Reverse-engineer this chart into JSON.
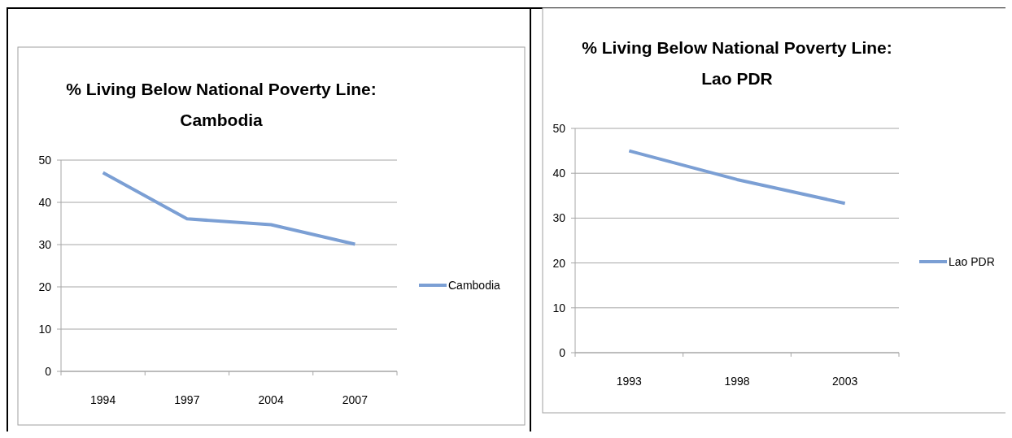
{
  "chart_data": [
    {
      "type": "line",
      "title": "% Living Below National Poverty Line: Cambodia",
      "categories": [
        "1994",
        "1997",
        "2004",
        "2007"
      ],
      "series": [
        {
          "name": "Cambodia",
          "color": "#7b9fd4",
          "values": [
            47,
            36.1,
            34.7,
            30.1
          ]
        }
      ],
      "ylim": [
        0,
        50
      ],
      "yticks": [
        0,
        10,
        20,
        30,
        40,
        50
      ],
      "grid": "y",
      "legend": "right",
      "marker": "none",
      "line_style": "solid"
    },
    {
      "type": "line",
      "title": "% Living Below National Poverty Line: Lao PDR",
      "categories": [
        "1993",
        "1998",
        "2003"
      ],
      "series": [
        {
          "name": "Lao PDR",
          "color": "#7b9fd4",
          "values": [
            45,
            38.6,
            33.3
          ]
        }
      ],
      "ylim": [
        0,
        50
      ],
      "yticks": [
        0,
        10,
        20,
        30,
        40,
        50
      ],
      "grid": "y",
      "legend": "right",
      "marker": "none",
      "line_style": "solid"
    }
  ]
}
